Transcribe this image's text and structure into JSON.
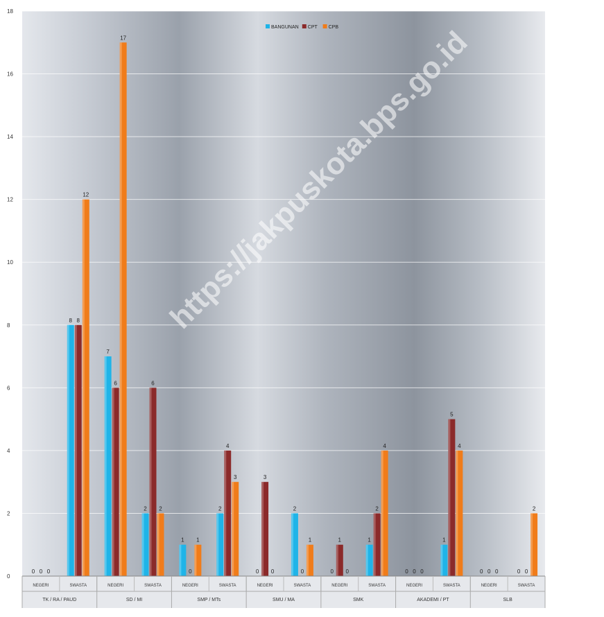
{
  "chart_data": {
    "type": "bar",
    "title": "",
    "xlabel": "",
    "ylabel": "",
    "ylim": [
      0,
      18
    ],
    "yticks": [
      0,
      2,
      4,
      6,
      8,
      10,
      12,
      14,
      16,
      18
    ],
    "grid": true,
    "legend_position": "top-center",
    "watermark": "https://jakpuskota.bps.go.id",
    "categories": [
      "NEGERI",
      "SWASTA",
      "NEGERI",
      "SWASTA",
      "NEGERI",
      "SWASTA",
      "NEGERI",
      "SWASTA",
      "NEGERI",
      "SWASTA",
      "NEGERI",
      "SWASTA",
      "NEGERI",
      "SWASTA"
    ],
    "groups": [
      {
        "label": "TK / RA / PAUD",
        "span": 2
      },
      {
        "label": "SD / MI",
        "span": 2
      },
      {
        "label": "SMP / MTs",
        "span": 2
      },
      {
        "label": "SMU / MA",
        "span": 2
      },
      {
        "label": "SMK",
        "span": 2
      },
      {
        "label": "AKADEMI / PT",
        "span": 2
      },
      {
        "label": "SLB",
        "span": 2
      }
    ],
    "series": [
      {
        "name": "BANGUNAN",
        "color": "#1fb4e8",
        "values": [
          0,
          8,
          7,
          2,
          1,
          2,
          0,
          2,
          0,
          1,
          0,
          1,
          0,
          0
        ]
      },
      {
        "name": "CPT",
        "color": "#8b2a2a",
        "values": [
          0,
          8,
          6,
          6,
          0,
          4,
          3,
          0,
          1,
          2,
          0,
          5,
          0,
          0
        ]
      },
      {
        "name": "CPB",
        "color": "#f07c1a",
        "values": [
          0,
          12,
          17,
          2,
          1,
          3,
          0,
          1,
          0,
          4,
          0,
          4,
          0,
          2
        ]
      }
    ]
  }
}
